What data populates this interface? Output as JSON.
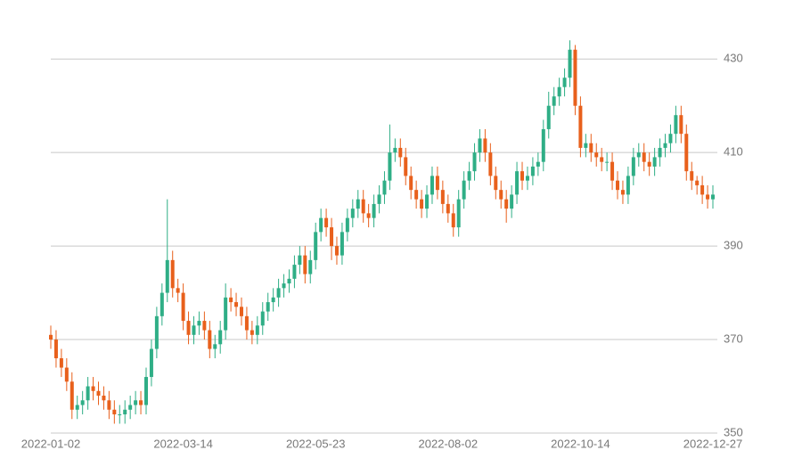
{
  "chart_data": {
    "type": "candlestick",
    "categories": [
      "2022-01-02",
      null,
      null,
      null,
      null,
      null,
      null,
      null,
      null,
      null,
      null,
      null,
      null,
      null,
      null,
      null,
      null,
      null,
      null,
      null,
      null,
      null,
      null,
      null,
      null,
      "2022-03-14",
      null,
      null,
      null,
      null,
      null,
      null,
      null,
      null,
      null,
      null,
      null,
      null,
      null,
      null,
      null,
      null,
      null,
      null,
      null,
      null,
      null,
      null,
      null,
      null,
      "2022-05-23",
      null,
      null,
      null,
      null,
      null,
      null,
      null,
      null,
      null,
      null,
      null,
      null,
      null,
      null,
      null,
      null,
      null,
      null,
      null,
      null,
      null,
      null,
      null,
      null,
      "2022-08-02",
      null,
      null,
      null,
      null,
      null,
      null,
      null,
      null,
      null,
      null,
      null,
      null,
      null,
      null,
      null,
      null,
      null,
      null,
      null,
      null,
      null,
      null,
      null,
      null,
      "2022-10-14",
      null,
      null,
      null,
      null,
      null,
      null,
      null,
      null,
      null,
      null,
      null,
      null,
      null,
      null,
      null,
      null,
      null,
      null,
      null,
      null,
      null,
      null,
      null,
      null,
      "2022-12-27"
    ],
    "open": [
      371,
      370,
      366,
      364,
      361,
      355,
      356,
      357,
      360,
      359,
      358,
      357,
      355,
      354,
      354,
      355,
      356,
      357,
      356,
      362,
      368,
      375,
      380,
      387,
      381,
      380,
      374,
      371,
      373,
      374,
      372,
      368,
      369,
      372,
      379,
      378,
      377,
      375,
      372,
      371,
      373,
      376,
      378,
      379,
      381,
      382,
      383,
      386,
      388,
      384,
      387,
      393,
      396,
      394,
      390,
      388,
      393,
      396,
      398,
      400,
      397,
      396,
      399,
      401,
      404,
      410,
      411,
      409,
      405,
      402,
      400,
      398,
      401,
      405,
      402,
      399,
      397,
      394,
      400,
      404,
      406,
      410,
      413,
      410,
      405,
      402,
      400,
      398,
      401,
      406,
      404,
      405,
      407,
      408,
      415,
      420,
      422,
      424,
      426,
      432,
      420,
      411,
      412,
      410,
      409,
      408,
      408,
      404,
      402,
      401,
      405,
      409,
      410,
      408,
      407,
      409,
      411,
      412,
      414,
      418,
      414,
      406,
      404,
      403,
      401,
      400
    ],
    "high": [
      373,
      372,
      368,
      366,
      363,
      358,
      359,
      362,
      362,
      361,
      360,
      359,
      357,
      356,
      357,
      358,
      359,
      359,
      364,
      370,
      377,
      382,
      400,
      389,
      383,
      382,
      376,
      375,
      376,
      376,
      374,
      371,
      374,
      382,
      381,
      380,
      379,
      377,
      374,
      375,
      378,
      380,
      381,
      383,
      384,
      385,
      388,
      390,
      390,
      389,
      395,
      398,
      398,
      396,
      392,
      395,
      398,
      400,
      402,
      402,
      399,
      401,
      403,
      406,
      416,
      413,
      413,
      411,
      407,
      404,
      402,
      403,
      407,
      407,
      404,
      401,
      399,
      402,
      406,
      408,
      412,
      415,
      415,
      412,
      407,
      404,
      402,
      403,
      408,
      408,
      407,
      409,
      410,
      417,
      423,
      424,
      426,
      428,
      434,
      433,
      422,
      414,
      414,
      412,
      411,
      410,
      410,
      406,
      404,
      407,
      411,
      412,
      412,
      410,
      411,
      413,
      414,
      416,
      420,
      420,
      416,
      408,
      405,
      405,
      403,
      403
    ],
    "low": [
      368,
      364,
      362,
      359,
      353,
      353,
      354,
      355,
      357,
      356,
      355,
      353,
      352,
      352,
      352,
      353,
      354,
      354,
      354,
      360,
      366,
      373,
      378,
      379,
      378,
      372,
      369,
      369,
      371,
      370,
      366,
      366,
      367,
      370,
      376,
      375,
      373,
      370,
      369,
      369,
      371,
      374,
      376,
      377,
      379,
      380,
      381,
      384,
      382,
      382,
      385,
      391,
      392,
      387,
      386,
      386,
      391,
      394,
      396,
      395,
      394,
      394,
      397,
      399,
      402,
      408,
      407,
      403,
      400,
      398,
      396,
      396,
      399,
      400,
      397,
      395,
      392,
      392,
      398,
      402,
      404,
      408,
      408,
      403,
      400,
      398,
      395,
      396,
      399,
      402,
      402,
      403,
      405,
      406,
      413,
      418,
      420,
      422,
      424,
      418,
      409,
      409,
      408,
      407,
      406,
      406,
      402,
      400,
      399,
      399,
      403,
      407,
      406,
      405,
      405,
      407,
      409,
      410,
      412,
      412,
      404,
      402,
      401,
      399,
      398,
      398
    ],
    "close": [
      370,
      366,
      364,
      361,
      355,
      356,
      357,
      360,
      359,
      358,
      357,
      355,
      354,
      354,
      355,
      356,
      357,
      356,
      362,
      368,
      375,
      380,
      387,
      381,
      380,
      374,
      371,
      373,
      374,
      372,
      368,
      369,
      372,
      379,
      378,
      377,
      375,
      372,
      371,
      373,
      376,
      378,
      379,
      381,
      382,
      383,
      386,
      388,
      384,
      387,
      393,
      396,
      394,
      390,
      388,
      393,
      396,
      398,
      400,
      397,
      396,
      399,
      401,
      404,
      410,
      411,
      409,
      405,
      402,
      400,
      398,
      401,
      405,
      402,
      399,
      397,
      394,
      400,
      404,
      406,
      410,
      413,
      410,
      405,
      402,
      400,
      398,
      401,
      406,
      404,
      405,
      407,
      408,
      415,
      420,
      422,
      424,
      426,
      432,
      420,
      411,
      412,
      410,
      409,
      408,
      408,
      404,
      402,
      401,
      405,
      409,
      410,
      408,
      407,
      409,
      411,
      412,
      414,
      418,
      414,
      406,
      404,
      403,
      401,
      400,
      401
    ],
    "up_color": "#2fae86",
    "down_color": "#e8601c",
    "ylim": [
      350,
      435
    ],
    "yticks": [
      350,
      370,
      390,
      410,
      430
    ],
    "grid": true
  }
}
